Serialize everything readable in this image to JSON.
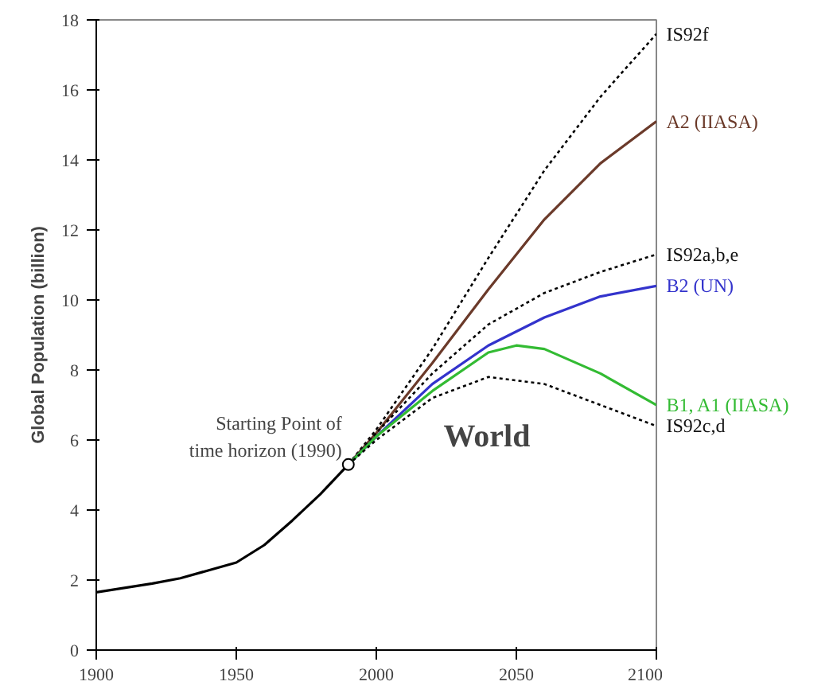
{
  "chart_data": {
    "type": "line",
    "ylabel": "Global Population (billion)",
    "xlim": [
      1900,
      2100
    ],
    "ylim": [
      0,
      18
    ],
    "xticks": [
      1900,
      1950,
      2000,
      2050,
      2100
    ],
    "yticks": [
      0,
      2,
      4,
      6,
      8,
      10,
      12,
      14,
      16,
      18
    ],
    "grid": false,
    "annotations": [
      {
        "text": "Starting Point of time horizon (1990)",
        "x": 1990,
        "y": 5.3
      },
      "World"
    ],
    "series": [
      {
        "color": "#000000",
        "line_style": "solid",
        "x": [
          1900,
          1920,
          1930,
          1950,
          1960,
          1970,
          1980,
          1990
        ],
        "values": [
          1.65,
          1.9,
          2.05,
          2.5,
          3.0,
          3.7,
          4.45,
          5.3
        ]
      },
      {
        "name": "IS92f",
        "color": "#000000",
        "line_style": "dashed",
        "x": [
          1990,
          2000,
          2020,
          2040,
          2060,
          2080,
          2100
        ],
        "values": [
          5.3,
          6.3,
          8.6,
          11.2,
          13.7,
          15.8,
          17.6
        ]
      },
      {
        "name": "A2 (IIASA)",
        "color": "#6b3a2a",
        "line_style": "solid",
        "x": [
          1990,
          2000,
          2020,
          2040,
          2060,
          2080,
          2100
        ],
        "values": [
          5.3,
          6.2,
          8.2,
          10.3,
          12.3,
          13.9,
          15.1
        ]
      },
      {
        "name": "IS92a,b,e",
        "color": "#000000",
        "line_style": "dashed",
        "x": [
          1990,
          2000,
          2020,
          2040,
          2060,
          2080,
          2100
        ],
        "values": [
          5.3,
          6.2,
          7.9,
          9.3,
          10.2,
          10.8,
          11.3
        ]
      },
      {
        "name": "B2 (UN)",
        "color": "#3333cc",
        "line_style": "solid",
        "x": [
          1990,
          2000,
          2020,
          2040,
          2060,
          2080,
          2100
        ],
        "values": [
          5.3,
          6.1,
          7.6,
          8.7,
          9.5,
          10.1,
          10.4
        ]
      },
      {
        "name": "B1, A1 (IIASA)",
        "color": "#33bb33",
        "line_style": "solid",
        "x": [
          1990,
          2000,
          2020,
          2040,
          2050,
          2060,
          2080,
          2100
        ],
        "values": [
          5.3,
          6.1,
          7.4,
          8.5,
          8.7,
          8.6,
          7.9,
          7.0
        ]
      },
      {
        "name": "IS92c,d",
        "color": "#000000",
        "line_style": "dashed",
        "x": [
          1990,
          2000,
          2020,
          2040,
          2060,
          2080,
          2100
        ],
        "values": [
          5.3,
          6.0,
          7.2,
          7.8,
          7.6,
          7.0,
          6.4
        ]
      },
      {
        "type": "scatter",
        "marker": "circle",
        "color": "#000000",
        "x": [
          1990
        ],
        "values": [
          5.3
        ]
      }
    ]
  }
}
